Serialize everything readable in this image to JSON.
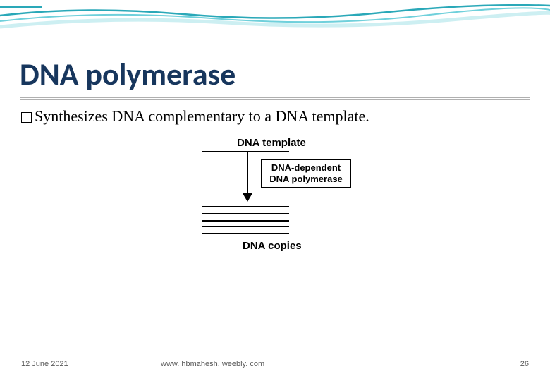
{
  "theme": {
    "title_color": "#17365d",
    "wave_colors": [
      "#2aa8b8",
      "#6fd0db",
      "#b8e8ed"
    ],
    "footer_color": "#595959",
    "underline_color": "#b0b0b0"
  },
  "title": "DNA polymerase",
  "bullet_text": "Synthesizes DNA complementary to a DNA template.",
  "diagram": {
    "template_label": "DNA template",
    "enzyme_line1": "DNA-dependent",
    "enzyme_line2": "DNA polymerase",
    "copies_label": "DNA copies",
    "copy_line_tops": [
      100,
      110,
      120,
      128,
      138
    ]
  },
  "footer": {
    "date": "12 June 2021",
    "url": "www. hbmahesh. weebly. com",
    "page": "26"
  }
}
